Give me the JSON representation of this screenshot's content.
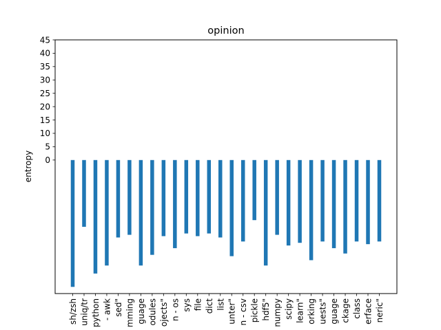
{
  "chart_data": {
    "type": "bar",
    "title": "opinion",
    "xlabel": "",
    "ylabel": "entropy",
    "ylim": [
      -50,
      45
    ],
    "yticks": [
      0,
      5,
      10,
      15,
      20,
      25,
      30,
      35,
      40,
      45
    ],
    "grid": false,
    "bar_color": "#1f77b4",
    "categories": [
      "sh/zsh",
      "uniq/tr",
      "python",
      "- awk",
      "sed\"",
      "mming",
      "guage",
      "odules",
      "ojects\"",
      "n - os",
      "sys",
      "file",
      "dict",
      "list",
      "unter\"",
      "n - csv",
      "pickle",
      "hdf5\"",
      "numpy",
      "scipy",
      "learn\"",
      "orking",
      "uests\"",
      "guage",
      "ckage",
      "class",
      "erface",
      "neric\""
    ],
    "values": [
      -47.5,
      -25.0,
      -42.5,
      -39.5,
      -29.0,
      -28.0,
      -39.5,
      -35.5,
      -28.5,
      -33.0,
      -27.5,
      -28.5,
      -27.5,
      -29.0,
      -36.0,
      -30.5,
      -22.5,
      -39.5,
      -28.0,
      -32.0,
      -31.0,
      -37.5,
      -30.5,
      -33.0,
      -35.0,
      -30.5,
      -31.5,
      -30.5
    ]
  }
}
